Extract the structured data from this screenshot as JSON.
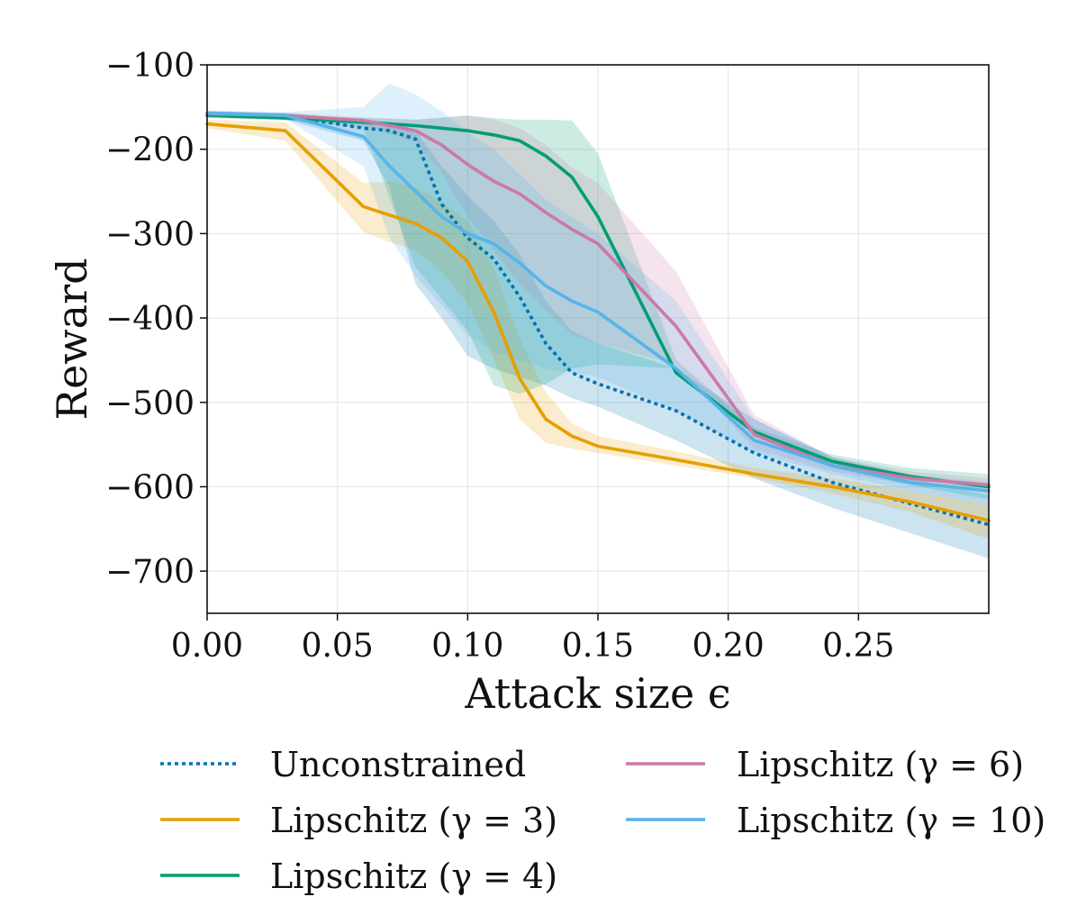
{
  "chart_data": {
    "type": "line",
    "title": "",
    "xlabel": "Attack size ϵ",
    "ylabel": "Reward",
    "xlim": [
      0.0,
      0.3
    ],
    "ylim": [
      -750,
      -100
    ],
    "grid": true,
    "x_ticks": [
      0.0,
      0.05,
      0.1,
      0.15,
      0.2,
      0.25
    ],
    "x_tick_labels": [
      "0.00",
      "0.05",
      "0.10",
      "0.15",
      "0.20",
      "0.25"
    ],
    "y_ticks": [
      -100,
      -200,
      -300,
      -400,
      -500,
      -600,
      -700
    ],
    "y_tick_labels": [
      "−100",
      "−200",
      "−300",
      "−400",
      "−500",
      "−600",
      "−700"
    ],
    "legend_position": "bottom",
    "series": [
      {
        "name": "Unconstrained",
        "color": "#0072B2",
        "style": "dotted",
        "x": [
          0.0,
          0.03,
          0.06,
          0.07,
          0.08,
          0.09,
          0.1,
          0.11,
          0.12,
          0.13,
          0.14,
          0.15,
          0.18,
          0.21,
          0.24,
          0.27,
          0.3
        ],
        "values": [
          -158,
          -160,
          -175,
          -178,
          -188,
          -265,
          -305,
          -330,
          -375,
          -430,
          -465,
          -478,
          -510,
          -560,
          -595,
          -620,
          -645
        ],
        "upper": [
          -155,
          -157,
          -165,
          -168,
          -178,
          -220,
          -255,
          -285,
          -325,
          -380,
          -415,
          -430,
          -460,
          -520,
          -565,
          -590,
          -610
        ],
        "lower": [
          -162,
          -165,
          -190,
          -245,
          -360,
          -400,
          -445,
          -460,
          -470,
          -480,
          -495,
          -505,
          -545,
          -590,
          -625,
          -655,
          -685
        ]
      },
      {
        "name": "Lipschitz (γ = 3)",
        "color": "#E69F00",
        "style": "solid",
        "x": [
          0.0,
          0.03,
          0.06,
          0.07,
          0.08,
          0.09,
          0.1,
          0.11,
          0.12,
          0.13,
          0.14,
          0.15,
          0.18,
          0.21,
          0.24,
          0.27,
          0.3
        ],
        "values": [
          -170,
          -178,
          -268,
          -278,
          -288,
          -305,
          -333,
          -393,
          -472,
          -520,
          -540,
          -552,
          -568,
          -585,
          -600,
          -618,
          -640
        ],
        "upper": [
          -165,
          -168,
          -240,
          -238,
          -245,
          -262,
          -285,
          -340,
          -425,
          -488,
          -525,
          -540,
          -558,
          -578,
          -590,
          -605,
          -620
        ],
        "lower": [
          -175,
          -190,
          -298,
          -310,
          -320,
          -345,
          -383,
          -448,
          -520,
          -548,
          -555,
          -560,
          -575,
          -590,
          -608,
          -630,
          -662
        ]
      },
      {
        "name": "Lipschitz (γ = 4)",
        "color": "#009E73",
        "style": "solid",
        "x": [
          0.0,
          0.03,
          0.06,
          0.08,
          0.1,
          0.11,
          0.12,
          0.13,
          0.14,
          0.15,
          0.18,
          0.21,
          0.24,
          0.27,
          0.3
        ],
        "values": [
          -160,
          -163,
          -168,
          -172,
          -178,
          -183,
          -190,
          -208,
          -233,
          -280,
          -465,
          -535,
          -570,
          -588,
          -600
        ],
        "upper": [
          -157,
          -160,
          -163,
          -165,
          -160,
          -163,
          -165,
          -165,
          -166,
          -205,
          -450,
          -530,
          -562,
          -578,
          -585
        ],
        "lower": [
          -163,
          -166,
          -175,
          -340,
          -415,
          -480,
          -490,
          -478,
          -460,
          -455,
          -460,
          -540,
          -578,
          -598,
          -615
        ]
      },
      {
        "name": "Lipschitz (γ = 6)",
        "color": "#CC79A7",
        "style": "solid",
        "x": [
          0.0,
          0.03,
          0.06,
          0.08,
          0.09,
          0.1,
          0.11,
          0.12,
          0.13,
          0.14,
          0.15,
          0.18,
          0.21,
          0.24,
          0.27,
          0.3
        ],
        "values": [
          -158,
          -160,
          -166,
          -178,
          -195,
          -218,
          -238,
          -253,
          -275,
          -295,
          -312,
          -410,
          -538,
          -575,
          -590,
          -598
        ],
        "upper": [
          -155,
          -157,
          -162,
          -165,
          -163,
          -160,
          -165,
          -175,
          -195,
          -222,
          -240,
          -345,
          -515,
          -565,
          -582,
          -590
        ],
        "lower": [
          -161,
          -163,
          -172,
          -192,
          -228,
          -280,
          -320,
          -360,
          -390,
          -420,
          -430,
          -455,
          -555,
          -582,
          -598,
          -605
        ]
      },
      {
        "name": "Lipschitz (γ = 10)",
        "color": "#56B4E9",
        "style": "solid",
        "x": [
          0.0,
          0.03,
          0.06,
          0.07,
          0.08,
          0.09,
          0.1,
          0.11,
          0.12,
          0.13,
          0.14,
          0.15,
          0.18,
          0.21,
          0.24,
          0.27,
          0.3
        ],
        "values": [
          -157,
          -160,
          -185,
          -220,
          -250,
          -280,
          -300,
          -312,
          -335,
          -362,
          -380,
          -393,
          -460,
          -545,
          -575,
          -595,
          -605
        ],
        "upper": [
          -154,
          -156,
          -150,
          -122,
          -135,
          -155,
          -180,
          -200,
          -230,
          -260,
          -280,
          -300,
          -380,
          -520,
          -565,
          -585,
          -595
        ],
        "lower": [
          -160,
          -164,
          -220,
          -305,
          -350,
          -385,
          -420,
          -440,
          -450,
          -460,
          -465,
          -470,
          -510,
          -560,
          -585,
          -605,
          -620
        ]
      }
    ]
  }
}
